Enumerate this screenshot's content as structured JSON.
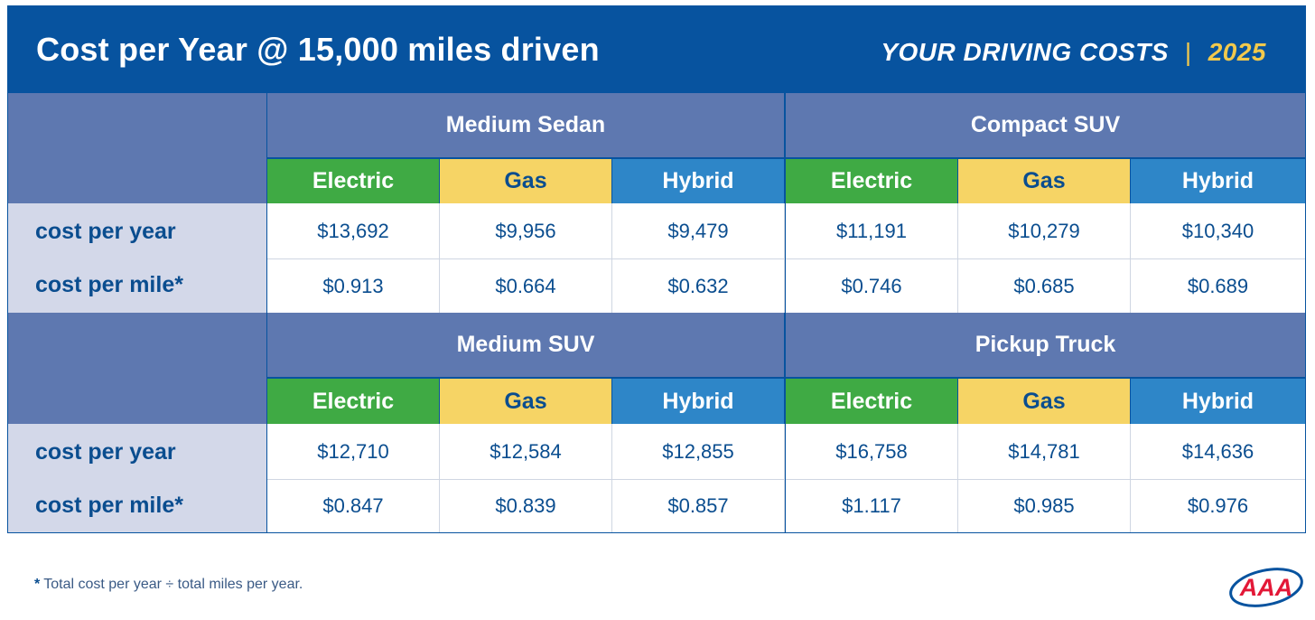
{
  "header": {
    "title": "Cost per Year @ 15,000 miles driven",
    "brand_name": "YOUR DRIVING COSTS",
    "brand_separator": "|",
    "brand_year": "2025"
  },
  "row_labels": {
    "cost_per_year": "cost per year",
    "cost_per_mile": "cost per mile*"
  },
  "fuel_types": [
    "Electric",
    "Gas",
    "Hybrid"
  ],
  "groups": [
    {
      "name": "Medium Sedan",
      "cost_per_year": [
        "$13,692",
        "$9,956",
        "$9,479"
      ],
      "cost_per_mile": [
        "$0.913",
        "$0.664",
        "$0.632"
      ]
    },
    {
      "name": "Compact SUV",
      "cost_per_year": [
        "$11,191",
        "$10,279",
        "$10,340"
      ],
      "cost_per_mile": [
        "$0.746",
        "$0.685",
        "$0.689"
      ]
    },
    {
      "name": "Medium SUV",
      "cost_per_year": [
        "$12,710",
        "$12,584",
        "$12,855"
      ],
      "cost_per_mile": [
        "$0.847",
        "$0.839",
        "$0.857"
      ]
    },
    {
      "name": "Pickup Truck",
      "cost_per_year": [
        "$16,758",
        "$14,781",
        "$14,636"
      ],
      "cost_per_mile": [
        "$1.117",
        "$0.985",
        "$0.976"
      ]
    }
  ],
  "footnote": {
    "marker": "*",
    "text": "Total cost per year ÷ total miles per year."
  },
  "logo": {
    "text": "AAA"
  },
  "colors": {
    "navy": "#07539f",
    "group_header": "#5e78b0",
    "label_bg": "#d3d8e9",
    "electric": "#3faa44",
    "gas": "#f6d465",
    "hybrid": "#2e86c8",
    "aaa_red": "#e31837"
  }
}
